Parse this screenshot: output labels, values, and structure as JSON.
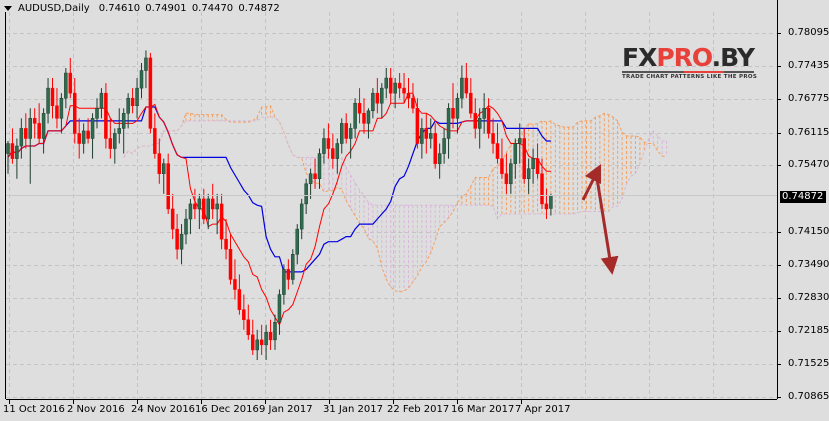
{
  "header": {
    "symbol_timeframe": "AUDUSD,Daily",
    "open": "0.74610",
    "high": "0.74901",
    "low": "0.74470",
    "close": "0.74872"
  },
  "watermark": {
    "brand_part1": "FX",
    "brand_part2": "PRO",
    "brand_part3": ".BY",
    "tagline": "TRADE CHART PATTERNS LIKE THE PROS"
  },
  "price_axis": {
    "labels": [
      "0.78095",
      "0.77435",
      "0.76775",
      "0.76115",
      "0.75470",
      "0.74150",
      "0.73490",
      "0.72830",
      "0.72185",
      "0.71525",
      "0.70865"
    ],
    "current_price": "0.74872",
    "current_price_color": "#000000"
  },
  "time_axis": {
    "labels": [
      "11 Oct 2016",
      "2 Nov 2016",
      "24 Nov 2016",
      "16 Dec 2016",
      "9 Jan 2017",
      "31 Jan 2017",
      "22 Feb 2017",
      "16 Mar 2017",
      "7 Apr 2017"
    ]
  },
  "colors": {
    "background": "#dedede",
    "grid": "#c4c4c4",
    "bull_candle": "#2f6b4f",
    "bear_candle": "#ff0000",
    "tenkan_line": "#ff0000",
    "kijun_line": "#0000e0",
    "kumo_bull": "#f5a060",
    "kumo_bear": "#d8b8d8",
    "arrow": "#a52a2a"
  },
  "chart_data": {
    "type": "candlestick",
    "title": "AUDUSD,Daily",
    "indicator": "Ichimoku Kinko Hyo",
    "x_tick_labels": [
      "11 Oct 2016",
      "2 Nov 2016",
      "24 Nov 2016",
      "16 Dec 2016",
      "9 Jan 2017",
      "31 Jan 2017",
      "22 Feb 2017",
      "16 Mar 2017",
      "7 Apr 2017"
    ],
    "y_tick_labels": [
      0.78095,
      0.77435,
      0.76775,
      0.76115,
      0.7547,
      0.7415,
      0.7349,
      0.7283,
      0.72185,
      0.71525,
      0.70865
    ],
    "ylim": [
      0.7073,
      0.7834
    ],
    "last_ohlc": {
      "open": 0.7461,
      "high": 0.74901,
      "low": 0.7447,
      "close": 0.74872
    },
    "candles": [
      [
        0.757,
        0.7595,
        0.753,
        0.759
      ],
      [
        0.759,
        0.762,
        0.755,
        0.756
      ],
      [
        0.756,
        0.76,
        0.752,
        0.7585
      ],
      [
        0.7585,
        0.764,
        0.756,
        0.762
      ],
      [
        0.762,
        0.765,
        0.758,
        0.76
      ],
      [
        0.76,
        0.766,
        0.751,
        0.764
      ],
      [
        0.764,
        0.766,
        0.76,
        0.763
      ],
      [
        0.763,
        0.767,
        0.759,
        0.76
      ],
      [
        0.76,
        0.766,
        0.757,
        0.765
      ],
      [
        0.765,
        0.772,
        0.763,
        0.77
      ],
      [
        0.77,
        0.772,
        0.764,
        0.7665
      ],
      [
        0.7665,
        0.77,
        0.762,
        0.764
      ],
      [
        0.764,
        0.769,
        0.761,
        0.768
      ],
      [
        0.768,
        0.774,
        0.766,
        0.773
      ],
      [
        0.773,
        0.776,
        0.768,
        0.769
      ],
      [
        0.769,
        0.772,
        0.759,
        0.761
      ],
      [
        0.761,
        0.764,
        0.756,
        0.759
      ],
      [
        0.759,
        0.763,
        0.757,
        0.7615
      ],
      [
        0.7615,
        0.764,
        0.759,
        0.76
      ],
      [
        0.76,
        0.765,
        0.756,
        0.764
      ],
      [
        0.764,
        0.768,
        0.762,
        0.766
      ],
      [
        0.766,
        0.77,
        0.764,
        0.769
      ],
      [
        0.769,
        0.771,
        0.758,
        0.76
      ],
      [
        0.76,
        0.764,
        0.756,
        0.758
      ],
      [
        0.758,
        0.762,
        0.755,
        0.761
      ],
      [
        0.761,
        0.766,
        0.759,
        0.762
      ],
      [
        0.762,
        0.766,
        0.757,
        0.765
      ],
      [
        0.765,
        0.769,
        0.762,
        0.768
      ],
      [
        0.768,
        0.77,
        0.765,
        0.7665
      ],
      [
        0.7665,
        0.772,
        0.764,
        0.77
      ],
      [
        0.77,
        0.775,
        0.768,
        0.7735
      ],
      [
        0.7735,
        0.7775,
        0.77,
        0.776
      ],
      [
        0.776,
        0.777,
        0.761,
        0.762
      ],
      [
        0.762,
        0.765,
        0.756,
        0.757
      ],
      [
        0.757,
        0.76,
        0.751,
        0.753
      ],
      [
        0.753,
        0.756,
        0.749,
        0.755
      ],
      [
        0.755,
        0.757,
        0.745,
        0.746
      ],
      [
        0.746,
        0.749,
        0.74,
        0.742
      ],
      [
        0.742,
        0.745,
        0.736,
        0.738
      ],
      [
        0.738,
        0.743,
        0.735,
        0.741
      ],
      [
        0.741,
        0.746,
        0.739,
        0.744
      ],
      [
        0.744,
        0.748,
        0.741,
        0.747
      ],
      [
        0.747,
        0.75,
        0.744,
        0.746
      ],
      [
        0.746,
        0.749,
        0.742,
        0.748
      ],
      [
        0.748,
        0.75,
        0.743,
        0.744
      ],
      [
        0.744,
        0.749,
        0.742,
        0.748
      ],
      [
        0.748,
        0.751,
        0.744,
        0.746
      ],
      [
        0.746,
        0.749,
        0.741,
        0.747
      ],
      [
        0.747,
        0.749,
        0.738,
        0.74
      ],
      [
        0.74,
        0.744,
        0.736,
        0.738
      ],
      [
        0.738,
        0.741,
        0.731,
        0.732
      ],
      [
        0.732,
        0.736,
        0.728,
        0.73
      ],
      [
        0.73,
        0.733,
        0.725,
        0.726
      ],
      [
        0.726,
        0.729,
        0.722,
        0.724
      ],
      [
        0.724,
        0.727,
        0.72,
        0.721
      ],
      [
        0.721,
        0.724,
        0.717,
        0.718
      ],
      [
        0.718,
        0.722,
        0.716,
        0.72
      ],
      [
        0.72,
        0.723,
        0.717,
        0.719
      ],
      [
        0.719,
        0.723,
        0.716,
        0.7215
      ],
      [
        0.7215,
        0.724,
        0.718,
        0.72
      ],
      [
        0.72,
        0.725,
        0.718,
        0.7235
      ],
      [
        0.7235,
        0.73,
        0.721,
        0.729
      ],
      [
        0.729,
        0.735,
        0.727,
        0.734
      ],
      [
        0.734,
        0.736,
        0.73,
        0.732
      ],
      [
        0.732,
        0.738,
        0.731,
        0.737
      ],
      [
        0.737,
        0.743,
        0.735,
        0.742
      ],
      [
        0.742,
        0.748,
        0.74,
        0.747
      ],
      [
        0.747,
        0.752,
        0.745,
        0.751
      ],
      [
        0.751,
        0.754,
        0.748,
        0.753
      ],
      [
        0.753,
        0.756,
        0.75,
        0.752
      ],
      [
        0.752,
        0.758,
        0.75,
        0.757
      ],
      [
        0.757,
        0.762,
        0.755,
        0.76
      ],
      [
        0.76,
        0.763,
        0.756,
        0.758
      ],
      [
        0.758,
        0.761,
        0.754,
        0.756
      ],
      [
        0.756,
        0.76,
        0.753,
        0.759
      ],
      [
        0.759,
        0.764,
        0.757,
        0.763
      ],
      [
        0.763,
        0.765,
        0.759,
        0.76
      ],
      [
        0.76,
        0.763,
        0.756,
        0.762
      ],
      [
        0.762,
        0.768,
        0.76,
        0.767
      ],
      [
        0.767,
        0.77,
        0.763,
        0.765
      ],
      [
        0.765,
        0.768,
        0.761,
        0.763
      ],
      [
        0.763,
        0.766,
        0.76,
        0.7655
      ],
      [
        0.7655,
        0.77,
        0.764,
        0.769
      ],
      [
        0.769,
        0.772,
        0.765,
        0.767
      ],
      [
        0.767,
        0.771,
        0.764,
        0.77
      ],
      [
        0.77,
        0.774,
        0.768,
        0.772
      ],
      [
        0.772,
        0.774,
        0.767,
        0.769
      ],
      [
        0.769,
        0.772,
        0.766,
        0.771
      ],
      [
        0.771,
        0.773,
        0.768,
        0.77
      ],
      [
        0.77,
        0.773,
        0.767,
        0.769
      ],
      [
        0.769,
        0.772,
        0.766,
        0.768
      ],
      [
        0.768,
        0.771,
        0.765,
        0.766
      ],
      [
        0.766,
        0.768,
        0.758,
        0.759
      ],
      [
        0.759,
        0.764,
        0.756,
        0.762
      ],
      [
        0.762,
        0.765,
        0.757,
        0.76
      ],
      [
        0.76,
        0.764,
        0.758,
        0.761
      ],
      [
        0.761,
        0.763,
        0.754,
        0.755
      ],
      [
        0.755,
        0.759,
        0.752,
        0.757
      ],
      [
        0.757,
        0.762,
        0.755,
        0.76
      ],
      [
        0.76,
        0.767,
        0.756,
        0.766
      ],
      [
        0.766,
        0.771,
        0.762,
        0.764
      ],
      [
        0.764,
        0.769,
        0.761,
        0.768
      ],
      [
        0.768,
        0.7745,
        0.766,
        0.772
      ],
      [
        0.772,
        0.775,
        0.768,
        0.769
      ],
      [
        0.769,
        0.772,
        0.764,
        0.765
      ],
      [
        0.765,
        0.768,
        0.76,
        0.762
      ],
      [
        0.762,
        0.766,
        0.758,
        0.764
      ],
      [
        0.764,
        0.769,
        0.761,
        0.766
      ],
      [
        0.766,
        0.768,
        0.76,
        0.761
      ],
      [
        0.761,
        0.764,
        0.757,
        0.759
      ],
      [
        0.759,
        0.763,
        0.755,
        0.756
      ],
      [
        0.756,
        0.76,
        0.752,
        0.753
      ],
      [
        0.753,
        0.757,
        0.749,
        0.751
      ],
      [
        0.751,
        0.756,
        0.749,
        0.755
      ],
      [
        0.755,
        0.76,
        0.752,
        0.759
      ],
      [
        0.759,
        0.763,
        0.755,
        0.76
      ],
      [
        0.76,
        0.762,
        0.751,
        0.752
      ],
      [
        0.752,
        0.756,
        0.749,
        0.754
      ],
      [
        0.754,
        0.758,
        0.751,
        0.756
      ],
      [
        0.756,
        0.759,
        0.752,
        0.753
      ],
      [
        0.753,
        0.756,
        0.746,
        0.747
      ],
      [
        0.747,
        0.75,
        0.744,
        0.746
      ],
      [
        0.7461,
        0.74901,
        0.7447,
        0.74872
      ]
    ],
    "annotations": [
      {
        "type": "arrow",
        "direction": "up",
        "from": [
          583,
          200
        ],
        "to": [
          597,
          172
        ]
      },
      {
        "type": "arrow",
        "direction": "down",
        "from": [
          596,
          172
        ],
        "to": [
          611,
          266
        ]
      }
    ]
  }
}
